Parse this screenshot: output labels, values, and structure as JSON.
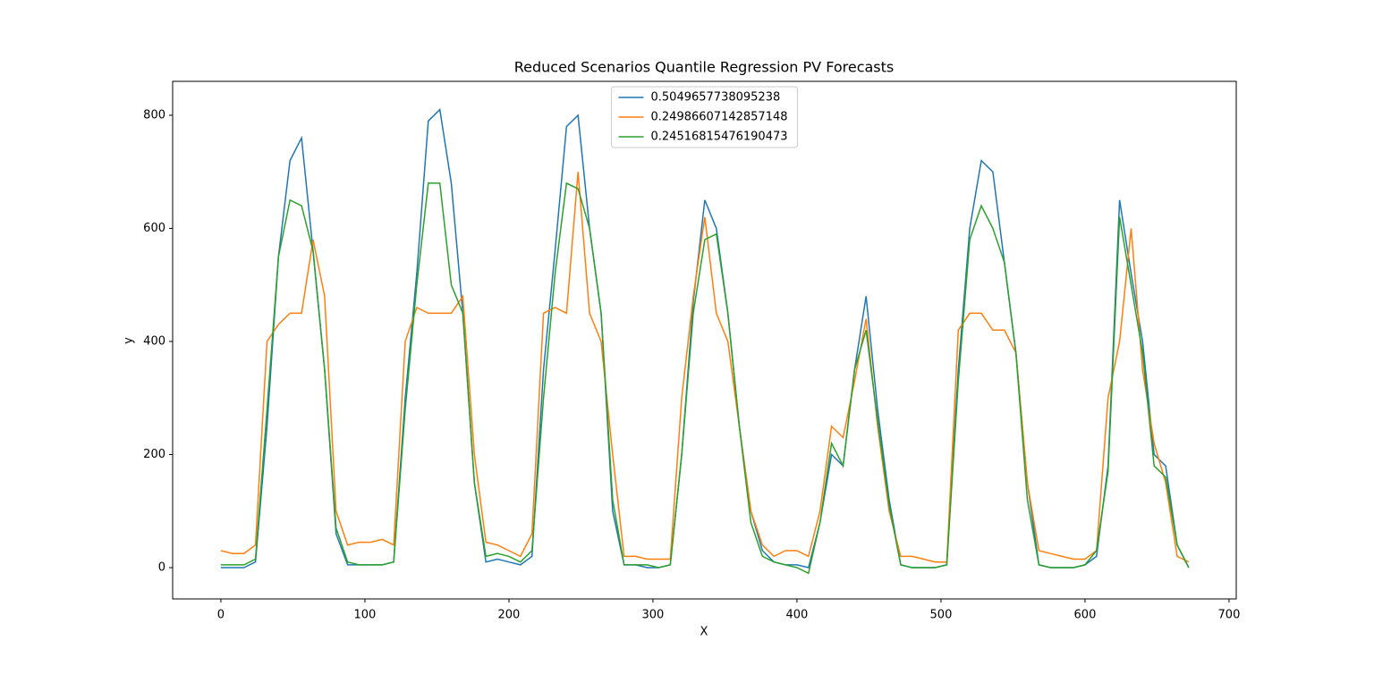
{
  "chart_data": {
    "type": "line",
    "title": "Reduced Scenarios Quantile Regression PV Forecasts",
    "xlabel": "X",
    "ylabel": "y",
    "x": [
      0,
      8,
      16,
      24,
      32,
      40,
      48,
      56,
      64,
      72,
      80,
      88,
      96,
      104,
      112,
      120,
      128,
      136,
      144,
      152,
      160,
      168,
      176,
      184,
      192,
      200,
      208,
      216,
      224,
      232,
      240,
      248,
      256,
      264,
      272,
      280,
      288,
      296,
      304,
      312,
      320,
      328,
      336,
      344,
      352,
      360,
      368,
      376,
      384,
      392,
      400,
      408,
      416,
      424,
      432,
      440,
      448,
      456,
      464,
      472,
      480,
      488,
      496,
      504,
      512,
      520,
      528,
      536,
      544,
      552,
      560,
      568,
      576,
      584,
      592,
      600,
      608,
      616,
      624,
      632,
      640,
      648,
      656,
      664,
      672
    ],
    "series": [
      {
        "name": "0.5049657738095238",
        "color": "#1f77b4",
        "values": [
          0,
          0,
          0,
          10,
          250,
          550,
          720,
          760,
          560,
          350,
          60,
          5,
          5,
          5,
          5,
          10,
          300,
          520,
          790,
          810,
          680,
          450,
          150,
          10,
          15,
          10,
          5,
          20,
          350,
          560,
          780,
          800,
          600,
          450,
          100,
          5,
          5,
          0,
          0,
          5,
          200,
          470,
          650,
          600,
          450,
          250,
          100,
          30,
          10,
          5,
          5,
          0,
          80,
          200,
          180,
          350,
          480,
          280,
          120,
          5,
          0,
          0,
          0,
          5,
          350,
          600,
          720,
          700,
          540,
          380,
          150,
          5,
          0,
          0,
          0,
          5,
          20,
          180,
          650,
          520,
          400,
          200,
          180,
          40,
          0
        ]
      },
      {
        "name": "0.24986607142857148",
        "color": "#ff7f0e",
        "values": [
          30,
          25,
          25,
          40,
          400,
          430,
          450,
          450,
          580,
          480,
          100,
          40,
          45,
          45,
          50,
          40,
          400,
          460,
          450,
          450,
          450,
          480,
          200,
          45,
          40,
          30,
          20,
          60,
          450,
          460,
          450,
          700,
          450,
          400,
          200,
          20,
          20,
          15,
          15,
          15,
          300,
          480,
          620,
          450,
          400,
          250,
          100,
          40,
          20,
          30,
          30,
          20,
          100,
          250,
          230,
          330,
          440,
          250,
          100,
          20,
          20,
          15,
          10,
          10,
          420,
          450,
          450,
          420,
          420,
          380,
          150,
          30,
          25,
          20,
          15,
          15,
          30,
          300,
          400,
          600,
          350,
          220,
          150,
          20,
          10
        ]
      },
      {
        "name": "0.24516815476190473",
        "color": "#2ca02c",
        "values": [
          5,
          5,
          5,
          15,
          280,
          550,
          650,
          640,
          560,
          350,
          70,
          10,
          5,
          5,
          5,
          10,
          280,
          500,
          680,
          680,
          500,
          450,
          150,
          20,
          25,
          20,
          10,
          30,
          300,
          520,
          680,
          670,
          600,
          450,
          120,
          5,
          5,
          5,
          0,
          5,
          200,
          450,
          580,
          590,
          450,
          250,
          80,
          20,
          10,
          5,
          0,
          -10,
          80,
          220,
          180,
          350,
          420,
          260,
          110,
          5,
          0,
          0,
          0,
          5,
          330,
          580,
          640,
          600,
          540,
          380,
          120,
          5,
          0,
          0,
          0,
          5,
          30,
          170,
          620,
          500,
          380,
          180,
          160,
          40,
          0
        ]
      }
    ],
    "xlim": [
      -33.5,
      705
    ],
    "ylim": [
      -55.3,
      860
    ],
    "xticks": [
      0,
      100,
      200,
      300,
      400,
      500,
      600,
      700
    ],
    "yticks": [
      0,
      200,
      400,
      600,
      800
    ],
    "legend": "upper center"
  }
}
